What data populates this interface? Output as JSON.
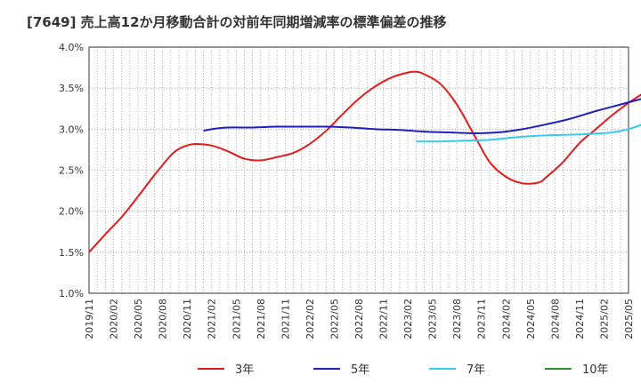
{
  "chart_data": {
    "type": "line",
    "title": "[7649]  売上高12か月移動合計の対前年同期増減率の標準偏差の推移",
    "xlabel": "",
    "ylabel": "",
    "ylim": [
      1.0,
      4.0
    ],
    "y_ticks": [
      "4.0%",
      "3.5%",
      "3.0%",
      "2.5%",
      "2.0%",
      "1.5%",
      "1.0%"
    ],
    "x_ticks": [
      "2019/11",
      "2020/02",
      "2020/05",
      "2020/08",
      "2020/11",
      "2021/02",
      "2021/05",
      "2021/08",
      "2021/11",
      "2022/02",
      "2022/05",
      "2022/08",
      "2022/11",
      "2023/02",
      "2023/05",
      "2023/08",
      "2023/11",
      "2024/02",
      "2024/05",
      "2024/08",
      "2024/11",
      "2025/02",
      "2025/05"
    ],
    "grid": true,
    "legend_position": "bottom",
    "series": [
      {
        "name": "3年",
        "color": "#e31a1c",
        "points": [
          [
            "2019/11",
            1.5
          ],
          [
            "2020/01",
            1.72
          ],
          [
            "2020/03",
            1.93
          ],
          [
            "2020/05",
            2.18
          ],
          [
            "2020/07",
            2.44
          ],
          [
            "2020/09",
            2.68
          ],
          [
            "2020/10",
            2.76
          ],
          [
            "2020/11",
            2.8
          ],
          [
            "2020/12",
            2.82
          ],
          [
            "2021/02",
            2.8
          ],
          [
            "2021/04",
            2.73
          ],
          [
            "2021/06",
            2.64
          ],
          [
            "2021/08",
            2.62
          ],
          [
            "2021/10",
            2.66
          ],
          [
            "2021/12",
            2.71
          ],
          [
            "2022/02",
            2.82
          ],
          [
            "2022/04",
            2.98
          ],
          [
            "2022/06",
            3.18
          ],
          [
            "2022/08",
            3.37
          ],
          [
            "2022/10",
            3.52
          ],
          [
            "2022/12",
            3.63
          ],
          [
            "2023/02",
            3.69
          ],
          [
            "2023/03",
            3.7
          ],
          [
            "2023/04",
            3.67
          ],
          [
            "2023/06",
            3.55
          ],
          [
            "2023/08",
            3.3
          ],
          [
            "2023/10",
            2.95
          ],
          [
            "2023/12",
            2.6
          ],
          [
            "2024/02",
            2.42
          ],
          [
            "2024/04",
            2.34
          ],
          [
            "2024/06",
            2.35
          ],
          [
            "2024/07",
            2.42
          ],
          [
            "2024/09",
            2.6
          ],
          [
            "2024/11",
            2.83
          ],
          [
            "2025/01",
            3.0
          ],
          [
            "2025/03",
            3.17
          ],
          [
            "2025/05",
            3.32
          ],
          [
            "2025/07",
            3.45
          ]
        ]
      },
      {
        "name": "5年",
        "color": "#1f1fbf",
        "points": [
          [
            "2021/01",
            2.98
          ],
          [
            "2021/02",
            3.0
          ],
          [
            "2021/04",
            3.02
          ],
          [
            "2021/07",
            3.02
          ],
          [
            "2021/10",
            3.03
          ],
          [
            "2022/01",
            3.03
          ],
          [
            "2022/04",
            3.03
          ],
          [
            "2022/07",
            3.02
          ],
          [
            "2022/10",
            3.0
          ],
          [
            "2023/01",
            2.99
          ],
          [
            "2023/04",
            2.97
          ],
          [
            "2023/07",
            2.96
          ],
          [
            "2023/10",
            2.95
          ],
          [
            "2024/01",
            2.96
          ],
          [
            "2024/04",
            3.0
          ],
          [
            "2024/07",
            3.06
          ],
          [
            "2024/10",
            3.13
          ],
          [
            "2025/01",
            3.22
          ],
          [
            "2025/04",
            3.3
          ],
          [
            "2025/07",
            3.38
          ]
        ]
      },
      {
        "name": "7年",
        "color": "#33ccee",
        "points": [
          [
            "2023/03",
            2.85
          ],
          [
            "2023/06",
            2.85
          ],
          [
            "2023/09",
            2.86
          ],
          [
            "2023/12",
            2.87
          ],
          [
            "2024/03",
            2.9
          ],
          [
            "2024/06",
            2.92
          ],
          [
            "2024/09",
            2.93
          ],
          [
            "2024/12",
            2.94
          ],
          [
            "2025/03",
            2.96
          ],
          [
            "2025/05",
            3.0
          ],
          [
            "2025/07",
            3.07
          ]
        ]
      },
      {
        "name": "10年",
        "color": "#2e8b2e",
        "points": []
      }
    ]
  }
}
